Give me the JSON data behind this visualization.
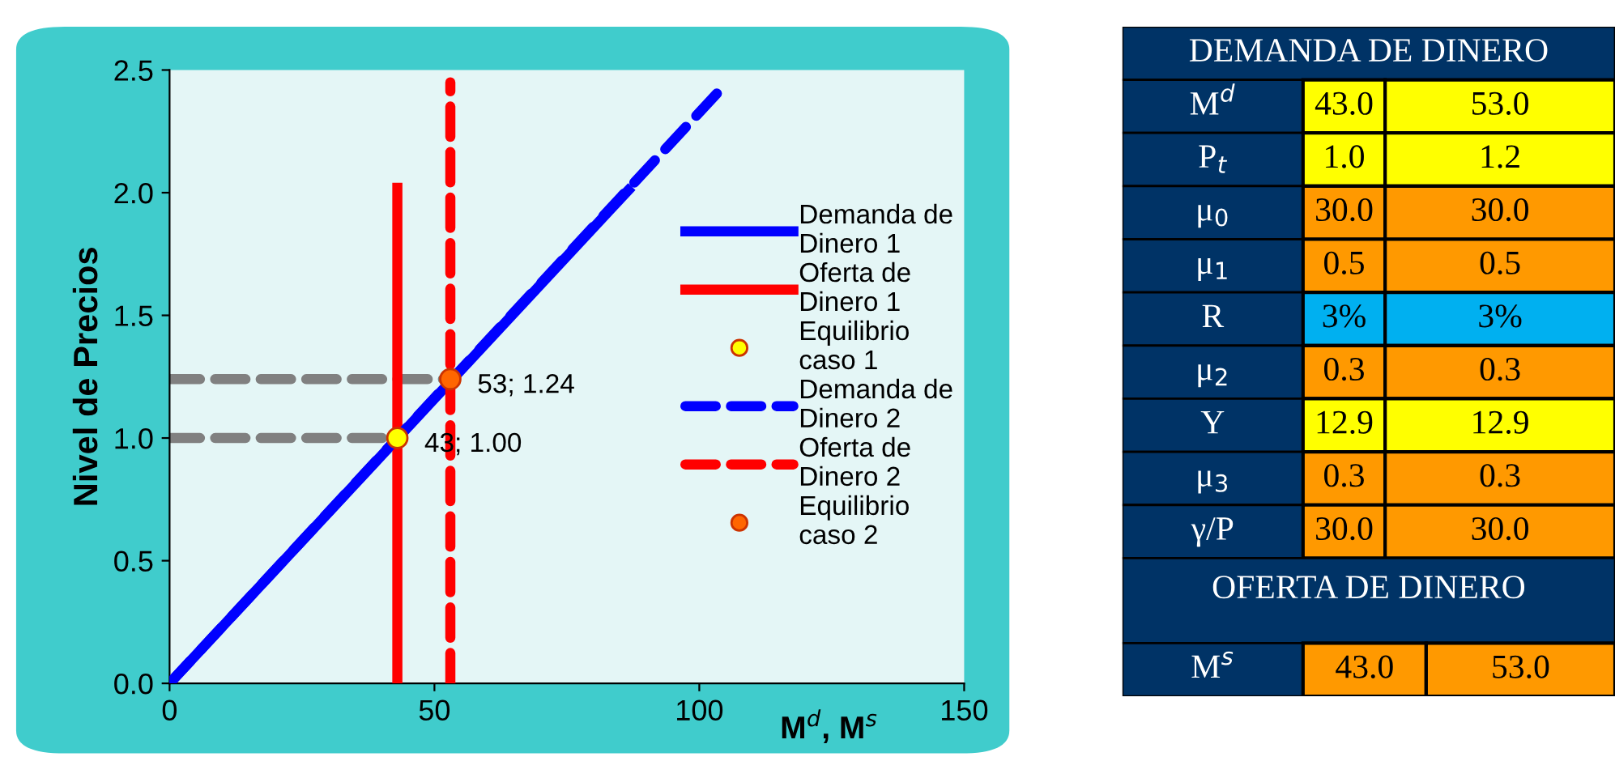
{
  "chart_data": [
    {
      "type": "line",
      "xlabel": "M$^{d}$, M$^{s}$",
      "ylabel": "Nivel de Precios",
      "xlim": [
        0,
        150
      ],
      "ylim": [
        0,
        2.5
      ],
      "xticks": [
        0,
        50,
        100,
        150
      ],
      "yticks": [
        {
          "value": 0,
          "label": "0.0"
        },
        {
          "value": 0.5,
          "label": "0.5"
        },
        {
          "value": 1,
          "label": "1.0"
        },
        {
          "value": 1.5,
          "label": "1.5"
        },
        {
          "value": 2,
          "label": "2.0"
        },
        {
          "value": 2.5,
          "label": "2.5"
        }
      ],
      "grid": false,
      "legend": "right",
      "series": [
        {
          "type": "line",
          "color": "#808080",
          "line_style": "dashed",
          "x": [
            0,
            43
          ],
          "values": [
            1.0,
            1.0
          ]
        },
        {
          "type": "line",
          "color": "#808080",
          "line_style": "dashed",
          "x": [
            0,
            53
          ],
          "values": [
            1.24,
            1.24
          ]
        },
        {
          "name": "Demanda de Dinero 1",
          "type": "line",
          "color": "#0000ff",
          "line_style": "solid",
          "x": [
            0,
            86.6
          ],
          "values": [
            0,
            2.01
          ]
        },
        {
          "name": "Oferta de Dinero 1",
          "type": "line",
          "color": "#ff0000",
          "line_style": "solid",
          "x": [
            43,
            43
          ],
          "values": [
            0,
            2.02
          ]
        },
        {
          "name": "Equilibrio caso 1",
          "type": "scatter",
          "color": "#ffff00",
          "marker": "circle",
          "x": [
            43
          ],
          "values": [
            1.0
          ],
          "value_labels": [
            "43; 1.00"
          ]
        },
        {
          "name": "Demanda de Dinero 2",
          "type": "line",
          "color": "#0000ff",
          "line_style": "dashed",
          "x": [
            0,
            104
          ],
          "values": [
            0,
            2.42
          ]
        },
        {
          "name": "Oferta de Dinero 2",
          "type": "line",
          "color": "#ff0000",
          "line_style": "dashed",
          "x": [
            53,
            53
          ],
          "values": [
            0,
            2.45
          ]
        },
        {
          "name": "Equilibrio caso 2",
          "type": "scatter",
          "color": "#ff6600",
          "marker": "circle",
          "x": [
            53
          ],
          "values": [
            1.24
          ],
          "value_labels": [
            "53; 1.24"
          ]
        }
      ]
    },
    {
      "type": "other",
      "title": "DEMANDA DE DINERO",
      "annotations": [
        "OFERTA DE DINERO"
      ],
      "y_categories": [
        "M$^{d}$",
        "P$_{t}$",
        "μ$_{0}$",
        "μ$_{1}$",
        "R",
        "μ$_{2}$",
        "Y",
        "μ$_{3}$",
        "γ/P",
        "M$^{s}$"
      ],
      "cell_labels": [
        [
          "43.0",
          "53.0"
        ],
        [
          "1.0",
          "1.2"
        ],
        [
          "30.0",
          "30.0"
        ],
        [
          "0.5",
          "0.5"
        ],
        [
          "3%",
          "3%"
        ],
        [
          "0.3",
          "0.3"
        ],
        [
          "12.9",
          "12.9"
        ],
        [
          "0.3",
          "0.3"
        ],
        [
          "30.0",
          "30.0"
        ],
        [
          "43.0",
          "53.0"
        ]
      ],
      "colors": [
        "#ffff00",
        "#ffff00",
        "#ff9900",
        "#ff9900",
        "#00b0f0",
        "#ff9900",
        "#ffff00",
        "#ff9900",
        "#ff9900",
        "#ff9900"
      ]
    }
  ]
}
